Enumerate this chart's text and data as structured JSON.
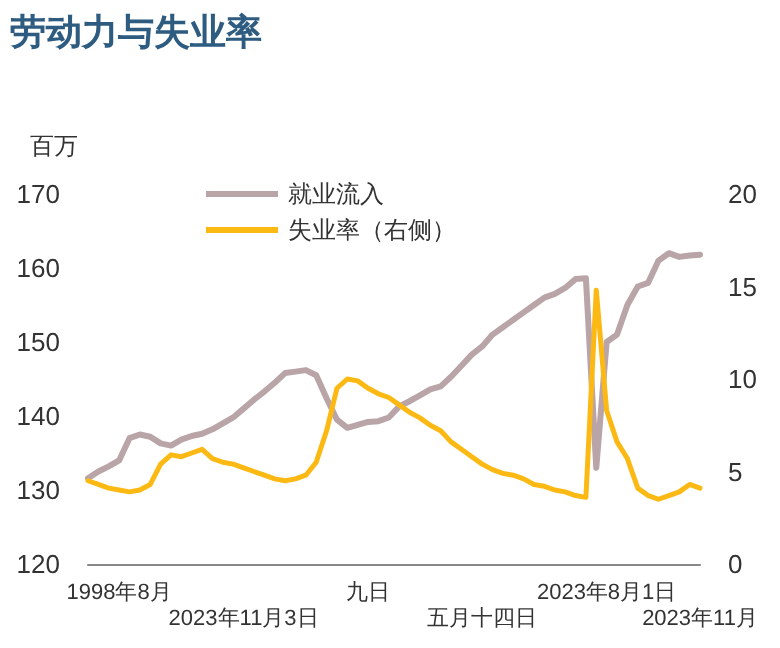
{
  "chart_data": {
    "type": "line",
    "title": "劳动力与失业率",
    "ylabel": "百万",
    "categories": [
      null,
      null,
      null,
      "1998年8月",
      null,
      null,
      null,
      null,
      null,
      null,
      null,
      null,
      null,
      null,
      null,
      "2023年11月3日",
      null,
      null,
      null,
      null,
      null,
      null,
      null,
      null,
      null,
      null,
      null,
      "九日",
      null,
      null,
      null,
      null,
      null,
      null,
      null,
      null,
      null,
      null,
      "五月十四日",
      null,
      null,
      null,
      null,
      null,
      null,
      null,
      null,
      null,
      null,
      null,
      "2023年8月1日",
      null,
      null,
      null,
      null,
      null,
      null,
      null,
      null,
      "2023年11月"
    ],
    "series": [
      {
        "name": "就业流入",
        "color": "#b9a4a7",
        "values": [
          131.6,
          132.5,
          133.2,
          134,
          137,
          137.5,
          137.2,
          136.3,
          136,
          136.8,
          137.3,
          137.6,
          138.2,
          139,
          139.8,
          141,
          142.2,
          143.3,
          144.5,
          145.8,
          146,
          146.2,
          145.5,
          142.4,
          139.5,
          138.4,
          138.8,
          139.2,
          139.3,
          139.8,
          141.3,
          142,
          142.8,
          143.6,
          144,
          145.3,
          146.8,
          148.3,
          149.4,
          151,
          152,
          153,
          154,
          155,
          156,
          156.5,
          157.3,
          158.5,
          158.6,
          133,
          150,
          151,
          155,
          157.5,
          158,
          161,
          162,
          161.5,
          161.7,
          161.8
        ]
      },
      {
        "name": "失业率（右侧）",
        "color": "#fdb913",
        "axis": "y2",
        "values": [
          4.5,
          4.3,
          4.1,
          4,
          3.9,
          4,
          4.3,
          5.4,
          5.9,
          5.8,
          6,
          6.2,
          5.7,
          5.5,
          5.4,
          5.2,
          5,
          4.8,
          4.6,
          4.5,
          4.6,
          4.8,
          5.5,
          7.2,
          9.5,
          10,
          9.9,
          9.5,
          9.2,
          9,
          8.6,
          8.2,
          7.9,
          7.5,
          7.2,
          6.6,
          6.2,
          5.8,
          5.4,
          5.1,
          4.9,
          4.8,
          4.6,
          4.3,
          4.2,
          4,
          3.9,
          3.7,
          3.6,
          14.8,
          8.3,
          6.6,
          5.7,
          4.1,
          3.7,
          3.5,
          3.7,
          3.9,
          4.3,
          4.1
        ]
      }
    ],
    "ylim": [
      120,
      170
    ],
    "yticks": [
      120,
      130,
      140,
      150,
      160,
      170
    ],
    "y2lim": [
      0,
      20
    ],
    "y2ticks": [
      0,
      5,
      10,
      15,
      20
    ],
    "grid": false,
    "legend": "top left",
    "marker": "none",
    "line_style": "solid"
  }
}
